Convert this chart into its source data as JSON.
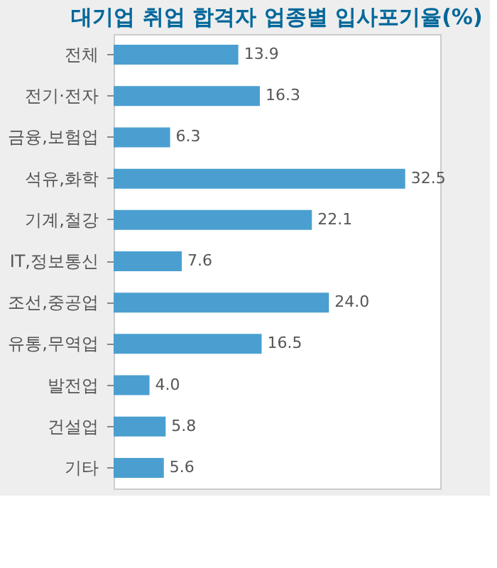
{
  "chart_data": {
    "type": "bar",
    "orientation": "horizontal",
    "title": "대기업 취업 합격자 업종별 입사포기율(%)",
    "categories": [
      "전체",
      "전기·전자",
      "금융,보험업",
      "석유,화학",
      "기계,철강",
      "IT,정보통신",
      "조선,중공업",
      "유통,무역업",
      "발전업",
      "건설업",
      "기타"
    ],
    "values": [
      13.9,
      16.3,
      6.3,
      32.5,
      22.1,
      7.6,
      24.0,
      16.5,
      4.0,
      5.8,
      5.6
    ],
    "value_labels": [
      "13.9",
      "16.3",
      "6.3",
      "32.5",
      "22.1",
      "7.6",
      "24.0",
      "16.5",
      "4.0",
      "5.8",
      "5.6"
    ],
    "color": "#4a9fd0"
  }
}
